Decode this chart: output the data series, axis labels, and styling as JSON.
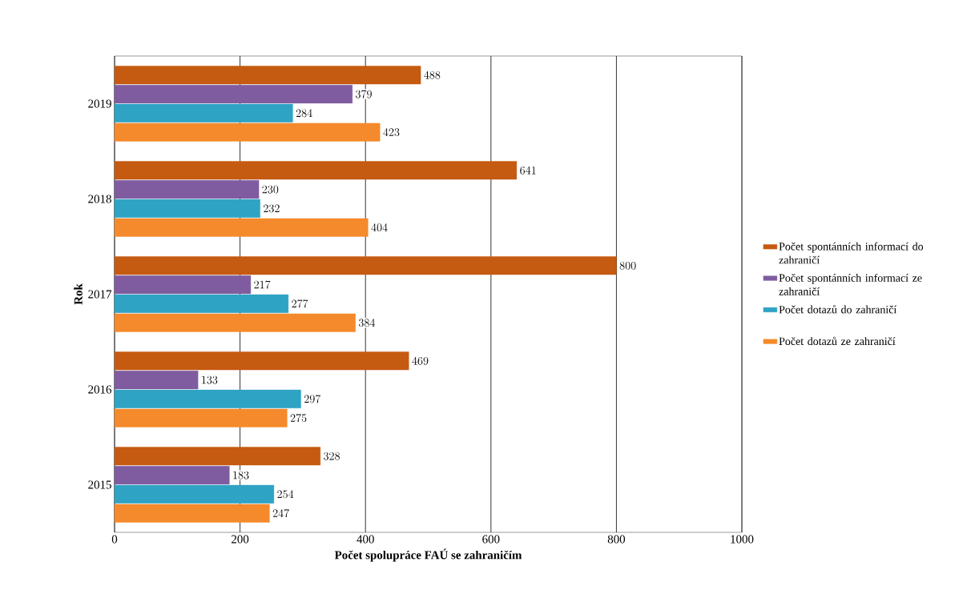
{
  "chart_data": {
    "type": "bar",
    "orientation": "horizontal",
    "xlabel": "Počet spolupráce FAÚ se zahraničím",
    "ylabel": "Rok",
    "categories": [
      "2019",
      "2018",
      "2017",
      "2016",
      "2015"
    ],
    "series": [
      {
        "name": "Počet spontánních informací do zahraničí",
        "color": "#c55a11",
        "values": [
          488,
          641,
          800,
          469,
          328
        ]
      },
      {
        "name": "Počet spontánních informací ze zahraničí",
        "color": "#7f5ca0",
        "values": [
          379,
          230,
          217,
          133,
          183
        ]
      },
      {
        "name": "Počet dotazů do zahraničí",
        "color": "#2fa3c4",
        "values": [
          284,
          232,
          277,
          297,
          254
        ]
      },
      {
        "name": "Počet dotazů ze zahraničí",
        "color": "#f58a2c",
        "values": [
          423,
          404,
          384,
          275,
          247
        ]
      }
    ],
    "xlim": [
      0,
      1000
    ],
    "xticks": [
      0,
      200,
      400,
      600,
      800,
      1000
    ],
    "grid": "x",
    "legend": "right",
    "data_labels": true
  }
}
